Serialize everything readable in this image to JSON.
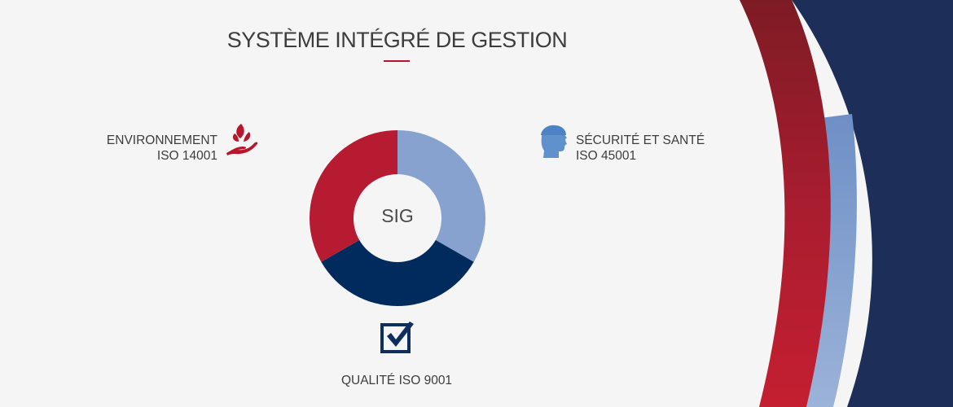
{
  "title": "SYSTÈME INTÉGRÉ DE GESTION",
  "center_label": "SIG",
  "segments": [
    {
      "key": "securite",
      "line1": "SÉCURITÉ ET SANTÉ",
      "line2": "ISO 45001",
      "icon": "helmeted-head-icon",
      "color": "#87a2cf",
      "share": 0.333
    },
    {
      "key": "qualite",
      "line1": "QUALITÉ ISO 9001",
      "line2": "",
      "icon": "checkbox-check-icon",
      "color": "#002b5c",
      "share": 0.334
    },
    {
      "key": "environnement",
      "line1": "ENVIRONNEMENT",
      "line2": "ISO 14001",
      "icon": "hand-with-leaves-icon",
      "color": "#b61b31",
      "share": 0.333
    }
  ],
  "colors": {
    "accent_red": "#b5172c",
    "navy": "#1d2f58",
    "light_blue": "#87a2cf",
    "background": "#f5f5f5"
  }
}
